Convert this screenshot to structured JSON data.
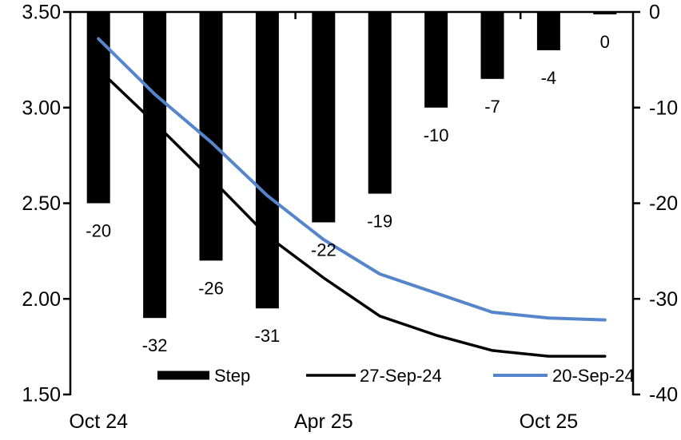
{
  "chart_data": {
    "type": "combo",
    "title": "",
    "categories_count": 10,
    "x_tick_labels": [
      {
        "label": "Oct 24",
        "index": 0
      },
      {
        "label": "Apr 25",
        "index": 4
      },
      {
        "label": "Oct 25",
        "index": 8
      }
    ],
    "left_axis": {
      "min": 1.5,
      "max": 3.5,
      "ticks": [
        "3.50",
        "3.00",
        "2.50",
        "2.00",
        "1.50"
      ]
    },
    "right_axis": {
      "min": -40,
      "max": 0,
      "ticks": [
        "0",
        "-10",
        "-20",
        "-30",
        "-40"
      ]
    },
    "series": [
      {
        "name": "Step",
        "type": "bar",
        "axis": "right",
        "color": "#000000",
        "values": [
          -20,
          -32,
          -26,
          -31,
          -22,
          -19,
          -10,
          -7,
          -4,
          0
        ],
        "labels": [
          "-20",
          "-32",
          "-26",
          "-31",
          "-22",
          "-19",
          "-10",
          "-7",
          "-4",
          "0"
        ]
      },
      {
        "name": "27-Sep-24",
        "type": "line",
        "axis": "left",
        "color": "#000000",
        "values": [
          3.2,
          2.92,
          2.63,
          2.33,
          2.11,
          1.91,
          1.81,
          1.73,
          1.7,
          1.7
        ]
      },
      {
        "name": "20-Sep-24",
        "type": "line",
        "axis": "left",
        "color": "#5586CB",
        "values": [
          3.36,
          3.07,
          2.82,
          2.54,
          2.31,
          2.13,
          2.03,
          1.93,
          1.9,
          1.89
        ]
      }
    ],
    "legend_position": "bottom-inside",
    "grid": false,
    "background": "#ffffff"
  }
}
